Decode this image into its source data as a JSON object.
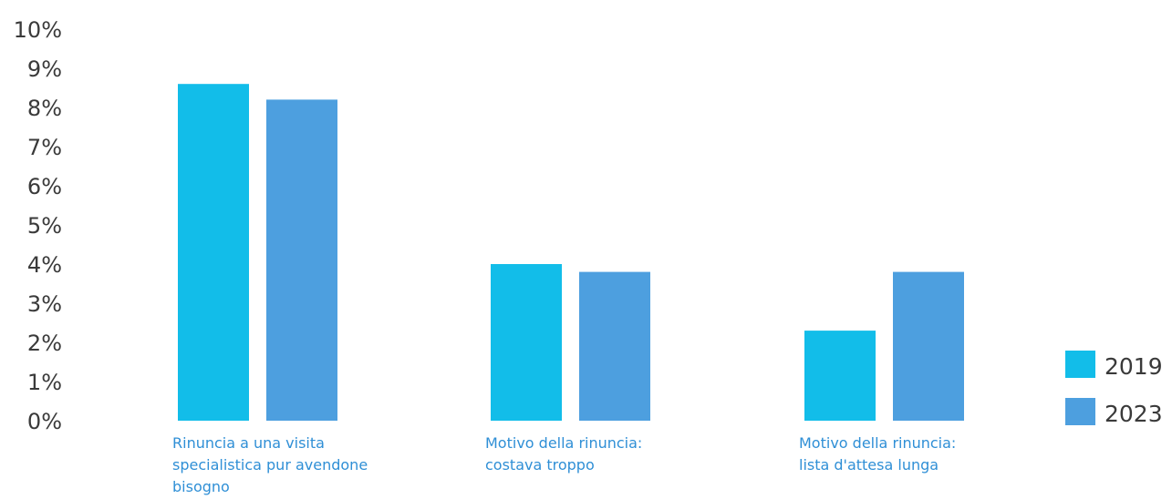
{
  "chart_data": {
    "type": "bar",
    "categories": [
      [
        "Rinuncia a una visita",
        "specialistica pur avendone",
        "bisogno"
      ],
      [
        "Motivo della rinuncia:",
        "costava troppo"
      ],
      [
        "Motivo della rinuncia:",
        "lista d'attesa lunga"
      ]
    ],
    "series": [
      {
        "name": "2019",
        "color": "#12bde9",
        "values": [
          8.6,
          4.0,
          2.3
        ]
      },
      {
        "name": "2023",
        "color": "#4d9fdf",
        "values": [
          8.2,
          3.8,
          3.8
        ]
      }
    ],
    "y_ticks": [
      "0%",
      "1%",
      "2%",
      "3%",
      "4%",
      "5%",
      "6%",
      "7%",
      "8%",
      "9%",
      "10%"
    ],
    "ylim": [
      0,
      10
    ],
    "grid": false,
    "legend_position": "bottom-right"
  }
}
